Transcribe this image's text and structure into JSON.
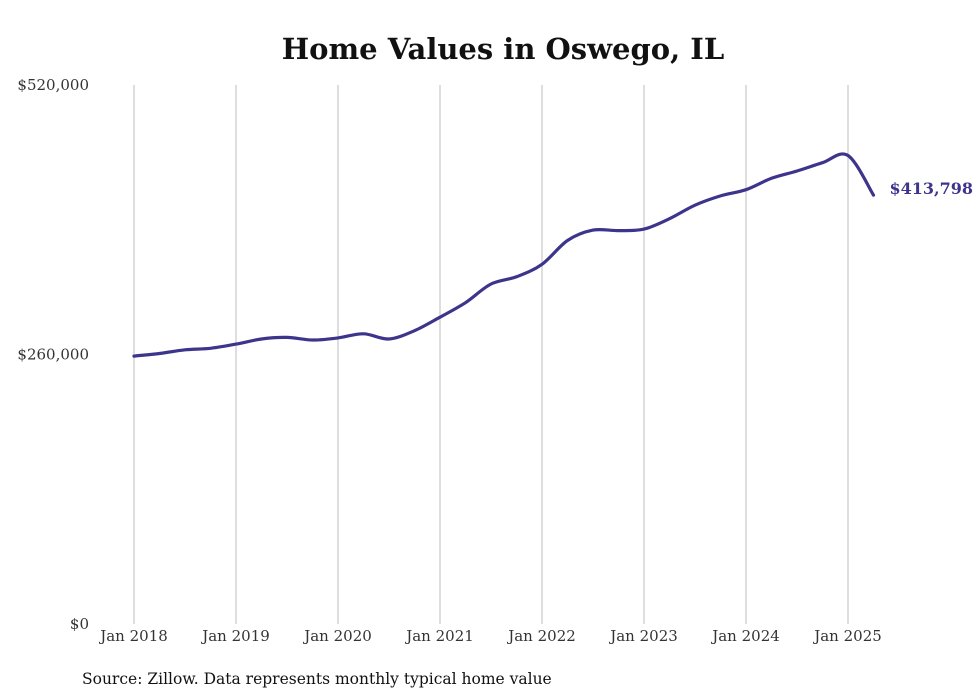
{
  "chart_data": {
    "type": "line",
    "title": "Home Values in Oswego, IL",
    "source_note": "Source: Zillow. Data represents monthly typical home value",
    "ylim": [
      0,
      520000
    ],
    "y_ticks": [
      {
        "value": 0,
        "label": "$0"
      },
      {
        "value": 260000,
        "label": "$260,000"
      },
      {
        "value": 520000,
        "label": "$520,000"
      }
    ],
    "x_ticks": [
      {
        "date": "2018-01",
        "label": "Jan 2018"
      },
      {
        "date": "2019-01",
        "label": "Jan 2019"
      },
      {
        "date": "2020-01",
        "label": "Jan 2020"
      },
      {
        "date": "2021-01",
        "label": "Jan 2021"
      },
      {
        "date": "2022-01",
        "label": "Jan 2022"
      },
      {
        "date": "2023-01",
        "label": "Jan 2023"
      },
      {
        "date": "2024-01",
        "label": "Jan 2024"
      },
      {
        "date": "2025-01",
        "label": "Jan 2025"
      }
    ],
    "x_range": [
      "2018-01",
      "2025-12"
    ],
    "grid": {
      "vertical": true,
      "horizontal": false
    },
    "end_label": "$413,798",
    "colors": {
      "line": "#3d348b",
      "grid": "#bdbdbd"
    },
    "series": [
      {
        "x": [
          "2018-01",
          "2018-04",
          "2018-07",
          "2018-10",
          "2019-01",
          "2019-04",
          "2019-07",
          "2019-10",
          "2020-01",
          "2020-04",
          "2020-07",
          "2020-10",
          "2021-01",
          "2021-04",
          "2021-07",
          "2021-10",
          "2022-01",
          "2022-04",
          "2022-07",
          "2022-10",
          "2023-01",
          "2023-04",
          "2023-07",
          "2023-10",
          "2024-01",
          "2024-04",
          "2024-07",
          "2024-10",
          "2025-01",
          "2025-04"
        ],
        "values": [
          258500,
          261000,
          264500,
          266000,
          270000,
          275000,
          276500,
          274000,
          276000,
          280000,
          275000,
          283000,
          296000,
          310000,
          328000,
          335000,
          347000,
          370000,
          380000,
          379500,
          381000,
          391000,
          404000,
          413000,
          419000,
          430000,
          437000,
          445000,
          452000,
          413798
        ]
      }
    ]
  }
}
